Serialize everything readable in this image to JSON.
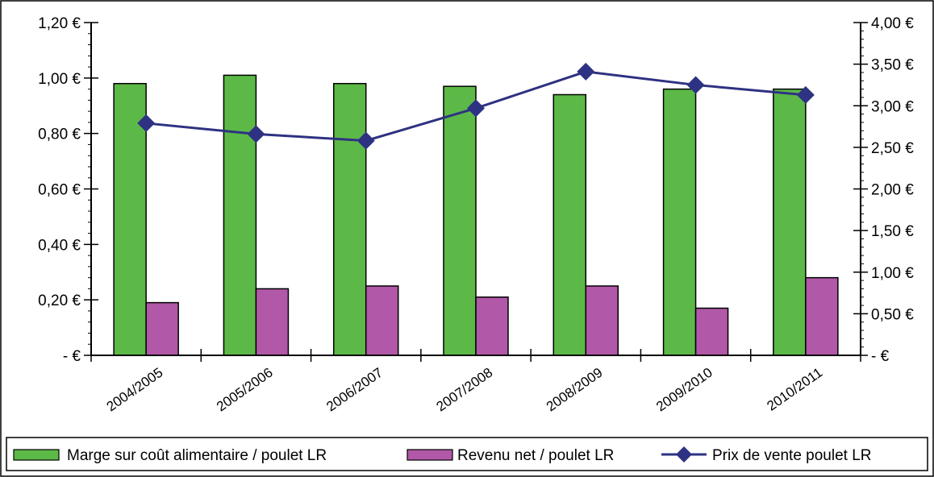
{
  "chart_data": {
    "type": "bar",
    "categories": [
      "2004/2005",
      "2005/2006",
      "2006/2007",
      "2007/2008",
      "2008/2009",
      "2009/2010",
      "2010/2011"
    ],
    "series": [
      {
        "name": "Marge sur coût alimentaire / poulet LR",
        "kind": "bar",
        "axis": "left",
        "color": "#5cb947",
        "values": [
          0.98,
          1.01,
          0.98,
          0.97,
          0.94,
          0.96,
          0.96
        ]
      },
      {
        "name": "Revenu net / poulet LR",
        "kind": "bar",
        "axis": "left",
        "color": "#b158a8",
        "values": [
          0.19,
          0.24,
          0.25,
          0.21,
          0.25,
          0.17,
          0.28
        ]
      },
      {
        "name": "Prix de vente poulet LR",
        "kind": "line",
        "axis": "right",
        "color": "#2e3282",
        "values": [
          2.79,
          2.66,
          2.58,
          2.97,
          3.41,
          3.25,
          3.13
        ]
      }
    ],
    "y_left": {
      "min": 0,
      "max": 1.2,
      "ticks": [
        0,
        0.2,
        0.4,
        0.6,
        0.8,
        1.0,
        1.2
      ],
      "tick_labels": [
        "- €",
        "0,20 €",
        "0,40 €",
        "0,60 €",
        "0,80 €",
        "1,00 €",
        "1,20 €"
      ]
    },
    "y_right": {
      "min": 0,
      "max": 4.0,
      "ticks": [
        0,
        0.5,
        1.0,
        1.5,
        2.0,
        2.5,
        3.0,
        3.5,
        4.0
      ],
      "tick_labels": [
        "- €",
        "0,50 €",
        "1,00 €",
        "1,50 €",
        "2,00 €",
        "2,50 €",
        "3,00 €",
        "3,50 €",
        "4,00 €"
      ]
    },
    "title": "",
    "xlabel": "",
    "legend_position": "bottom",
    "grid": false
  }
}
